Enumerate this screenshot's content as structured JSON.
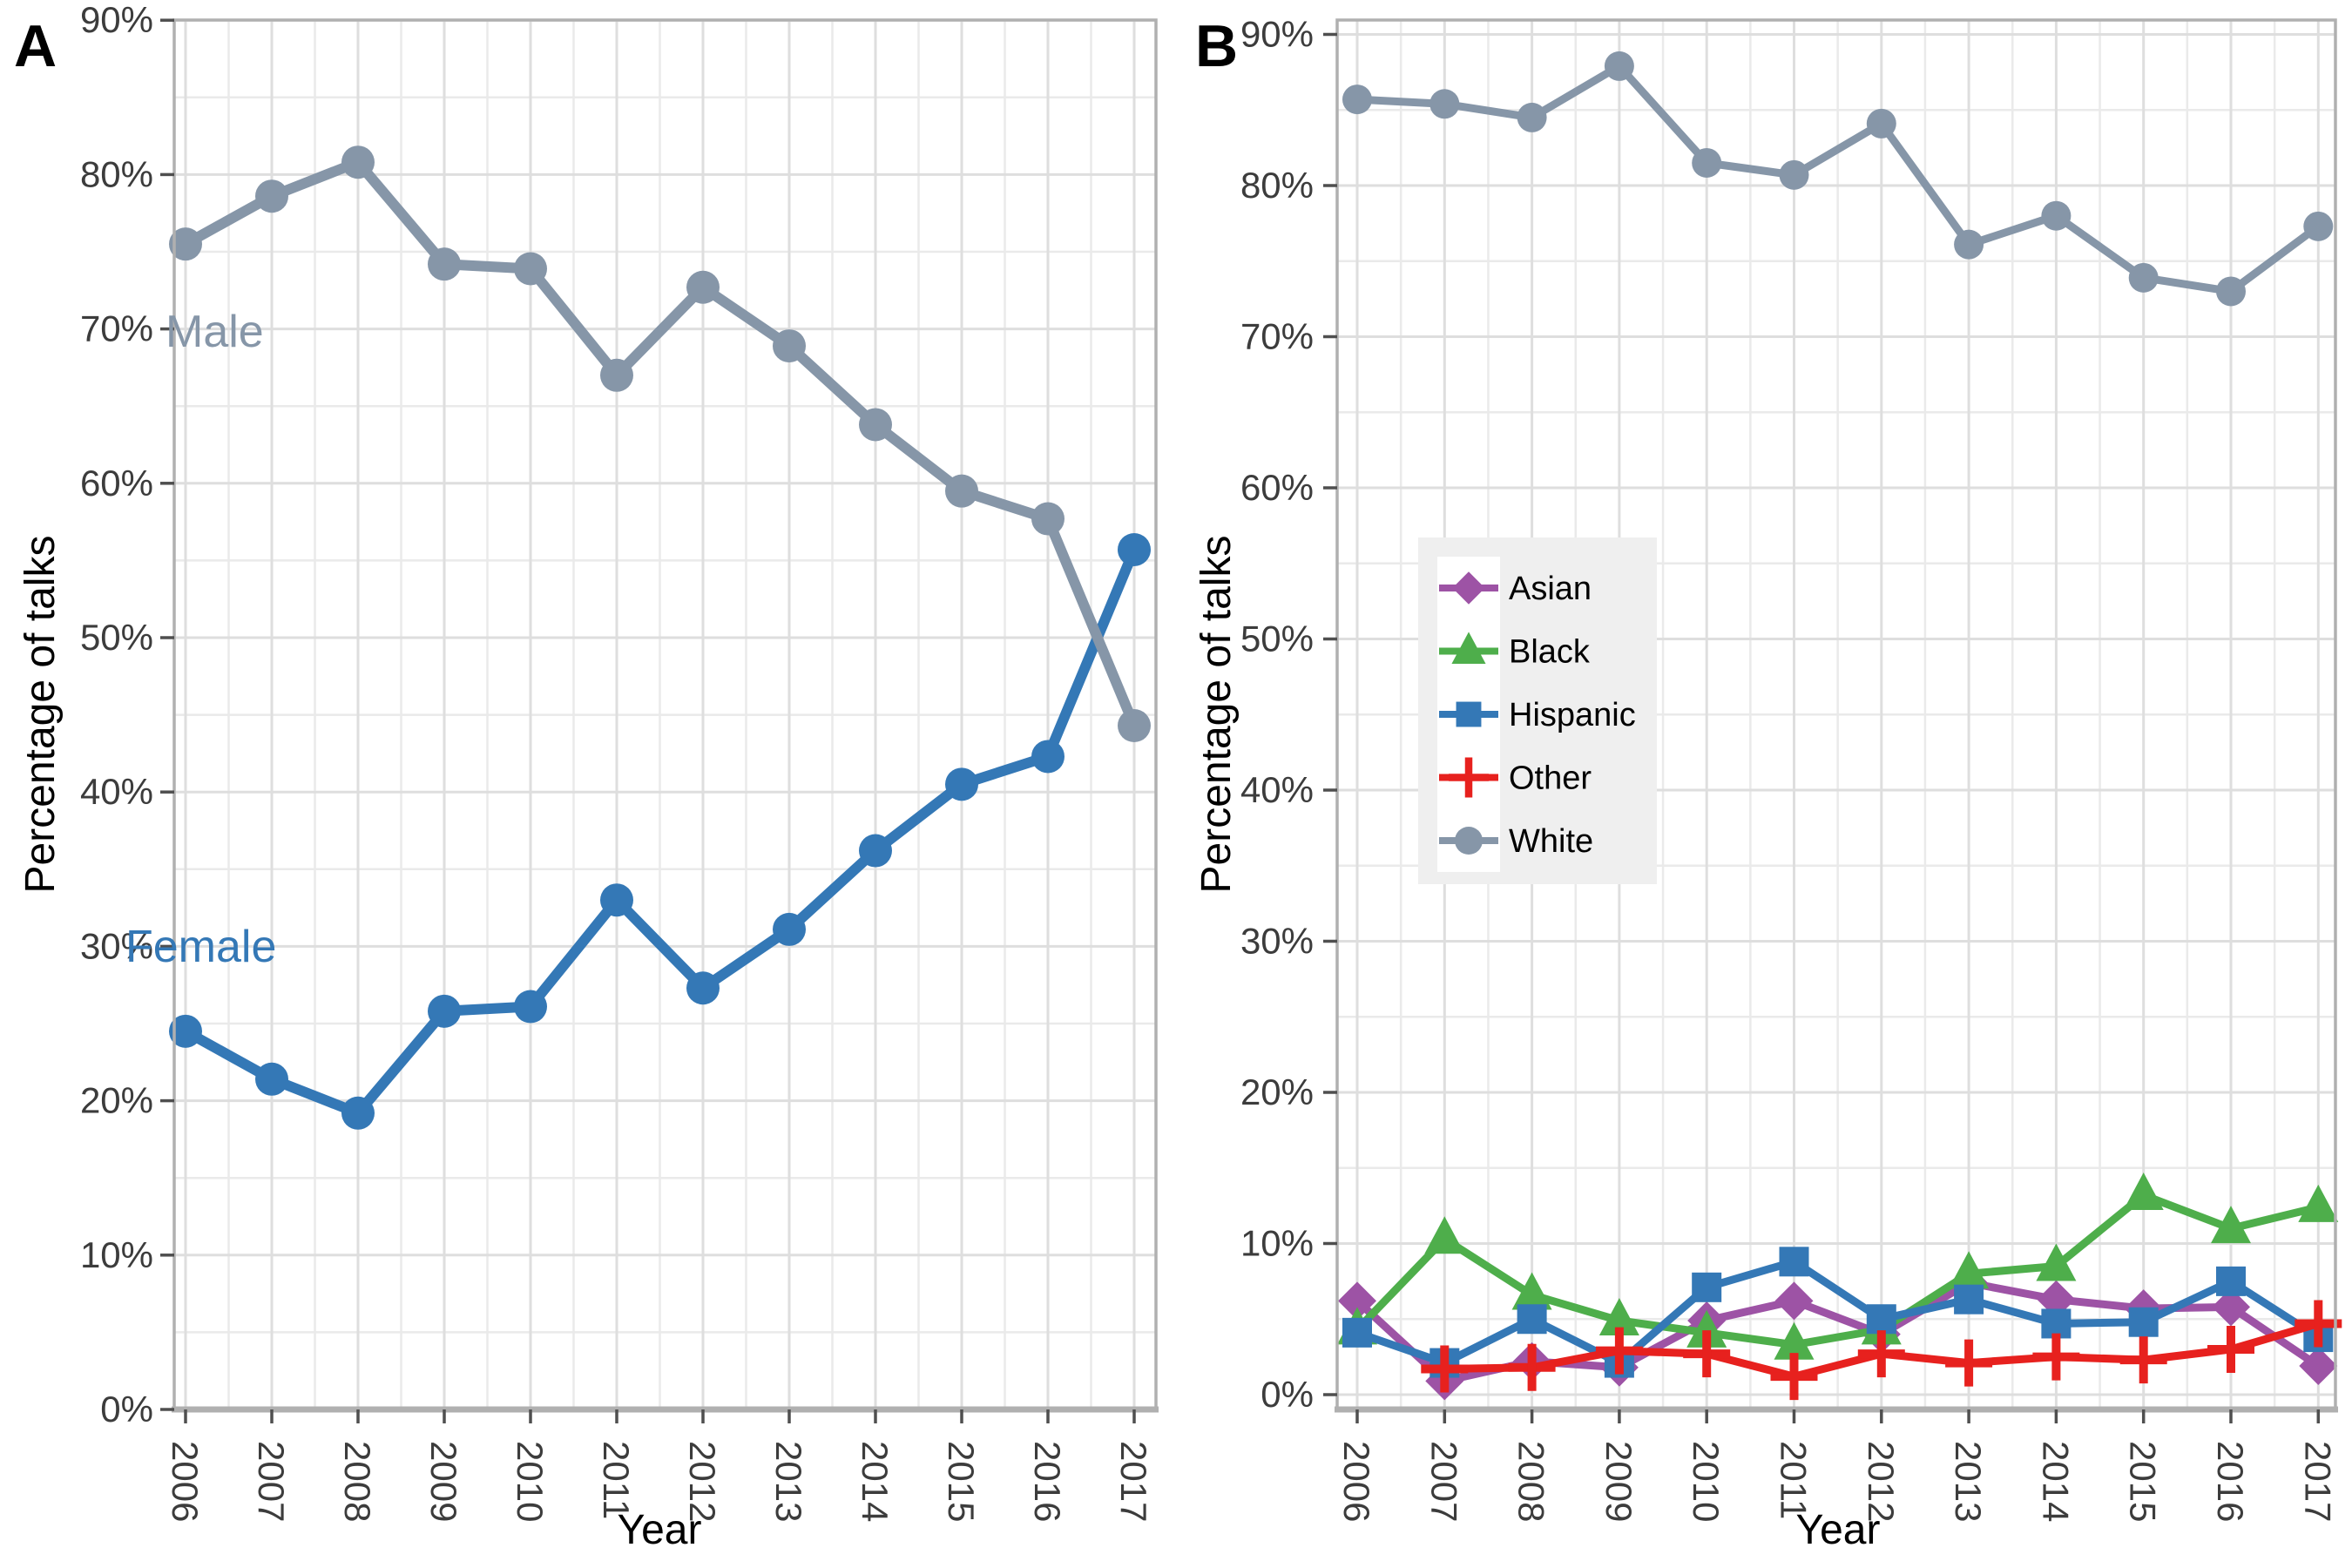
{
  "figure": {
    "panel_labels": [
      "A",
      "B"
    ],
    "background": "#ffffff",
    "grid_major_color": "#dedede",
    "grid_minor_color": "#eaeaea",
    "panel_border_color": "#b0b0b0",
    "axis_line_color": "#b0b0b0",
    "tick_mark_color": "#4f4f4f",
    "tick_text_color": "#3c3c3c",
    "legend_box_color": "#efefef",
    "legend_key_color": "#ffffff"
  },
  "chart_data": [
    {
      "type": "line",
      "panel": "A",
      "title": "",
      "xlabel": "Year",
      "ylabel": "Percentage of talks",
      "x": [
        "2006",
        "2007",
        "2008",
        "2009",
        "2010",
        "2011",
        "2012",
        "2013",
        "2014",
        "2015",
        "2016",
        "2017"
      ],
      "ylim": [
        0,
        90
      ],
      "y_tick_labels": [
        "0%",
        "10%",
        "20%",
        "30%",
        "40%",
        "50%",
        "60%",
        "70%",
        "80%",
        "90%"
      ],
      "grid": true,
      "legend_position": "none",
      "annotations": [
        {
          "text": "Male",
          "series": "Male"
        },
        {
          "text": "Female",
          "series": "Female"
        }
      ],
      "series": [
        {
          "name": "Female",
          "color": "#3478b6",
          "marker": "circle",
          "values": [
            24.5,
            21.4,
            19.2,
            25.8,
            26.1,
            33.0,
            27.3,
            31.1,
            36.2,
            40.5,
            42.3,
            55.7
          ]
        },
        {
          "name": "Male",
          "color": "#8696a8",
          "marker": "circle",
          "values": [
            75.5,
            78.6,
            80.8,
            74.2,
            73.9,
            67.0,
            72.7,
            68.9,
            63.8,
            59.5,
            57.7,
            44.3
          ]
        }
      ]
    },
    {
      "type": "line",
      "panel": "B",
      "title": "",
      "xlabel": "Year",
      "ylabel": "Percentage of talks",
      "x": [
        "2006",
        "2007",
        "2008",
        "2009",
        "2010",
        "2011",
        "2012",
        "2013",
        "2014",
        "2015",
        "2016",
        "2017"
      ],
      "ylim": [
        0,
        90
      ],
      "y_tick_labels": [
        "0%",
        "10%",
        "20%",
        "30%",
        "40%",
        "50%",
        "60%",
        "70%",
        "80%",
        "90%"
      ],
      "grid": true,
      "legend_position": "left-center",
      "annotations": [],
      "series": [
        {
          "name": "Asian",
          "color": "#9d53a5",
          "marker": "diamond",
          "values": [
            6.2,
            0.9,
            2.2,
            1.8,
            4.9,
            6.2,
            4.0,
            7.4,
            6.3,
            5.7,
            5.8,
            1.9
          ]
        },
        {
          "name": "Black",
          "color": "#4eae4b",
          "marker": "triangle",
          "values": [
            4.3,
            10.3,
            6.6,
            4.9,
            4.1,
            3.3,
            4.3,
            8.0,
            8.5,
            13.2,
            11.0,
            12.4
          ]
        },
        {
          "name": "Hispanic",
          "color": "#3478b6",
          "marker": "square",
          "values": [
            4.1,
            2.1,
            5.0,
            2.1,
            7.1,
            8.8,
            5.0,
            6.3,
            4.7,
            4.8,
            7.5,
            3.8
          ]
        },
        {
          "name": "Other",
          "color": "#e7211e",
          "marker": "plus",
          "values": [
            null,
            1.7,
            1.8,
            2.9,
            2.7,
            1.2,
            2.7,
            2.1,
            2.5,
            2.3,
            3.0,
            4.7
          ]
        },
        {
          "name": "White",
          "color": "#8696a8",
          "marker": "circle",
          "values": [
            85.7,
            85.4,
            84.5,
            87.9,
            81.5,
            80.7,
            84.1,
            76.1,
            78.0,
            73.9,
            73.0,
            77.3
          ]
        }
      ]
    }
  ]
}
